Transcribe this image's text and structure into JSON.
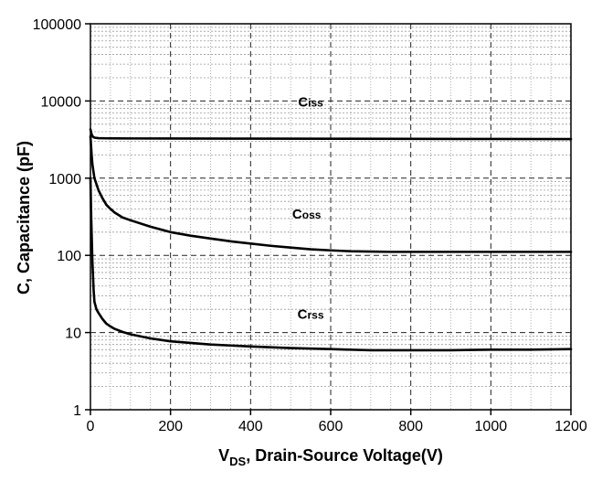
{
  "chart_data": {
    "type": "line",
    "title": "",
    "xlabel": {
      "main": "V",
      "sub": "DS",
      "rest": ", Drain-Source Voltage(V)"
    },
    "ylabel": "C, Capacitance (pF)",
    "xlim": [
      0,
      1200
    ],
    "ylim": [
      1,
      100000
    ],
    "yscale": "log",
    "x_major_ticks": [
      0,
      200,
      400,
      600,
      800,
      1000,
      1200
    ],
    "x_tick_labels": [
      "0",
      "200",
      "400",
      "600",
      "800",
      "1000",
      "1200"
    ],
    "y_major_ticks": [
      1,
      10,
      100,
      1000,
      10000,
      100000
    ],
    "y_tick_labels": [
      "1",
      "10",
      "100",
      "1000",
      "10000",
      "100000"
    ],
    "grid": true,
    "series": [
      {
        "name": "Ciss",
        "label_main": "C",
        "label_sub": "iss",
        "label_at": [
          550,
          8500
        ],
        "x": [
          0,
          3,
          6,
          10,
          20,
          40,
          100,
          200,
          400,
          600,
          800,
          1000,
          1200
        ],
        "y": [
          4300,
          3700,
          3450,
          3350,
          3300,
          3280,
          3270,
          3260,
          3250,
          3240,
          3230,
          3220,
          3210
        ]
      },
      {
        "name": "Coss",
        "label_main": "C",
        "label_sub": "oss",
        "label_at": [
          540,
          300
        ],
        "x": [
          0,
          3,
          5,
          10,
          20,
          30,
          40,
          50,
          60,
          80,
          100,
          150,
          200,
          250,
          300,
          350,
          400,
          450,
          500,
          550,
          600,
          650,
          700,
          750,
          800,
          900,
          1000,
          1100,
          1200
        ],
        "y": [
          3500,
          2000,
          1500,
          1000,
          700,
          550,
          450,
          400,
          360,
          310,
          285,
          235,
          200,
          180,
          165,
          152,
          142,
          133,
          126,
          120,
          116,
          113,
          112,
          111,
          111,
          111,
          111,
          111,
          111
        ]
      },
      {
        "name": "Crss",
        "label_main": "C",
        "label_sub": "rss",
        "label_at": [
          550,
          15
        ],
        "x": [
          0,
          2,
          5,
          8,
          10,
          15,
          20,
          30,
          40,
          50,
          60,
          80,
          100,
          150,
          200,
          300,
          400,
          500,
          600,
          700,
          800,
          900,
          1000,
          1100,
          1200
        ],
        "y": [
          1000,
          300,
          80,
          35,
          25,
          20,
          18,
          15,
          13,
          12,
          11.2,
          10.2,
          9.5,
          8.4,
          7.7,
          7.0,
          6.6,
          6.3,
          6.1,
          5.9,
          5.9,
          5.9,
          6.0,
          6.0,
          6.1
        ]
      }
    ]
  }
}
